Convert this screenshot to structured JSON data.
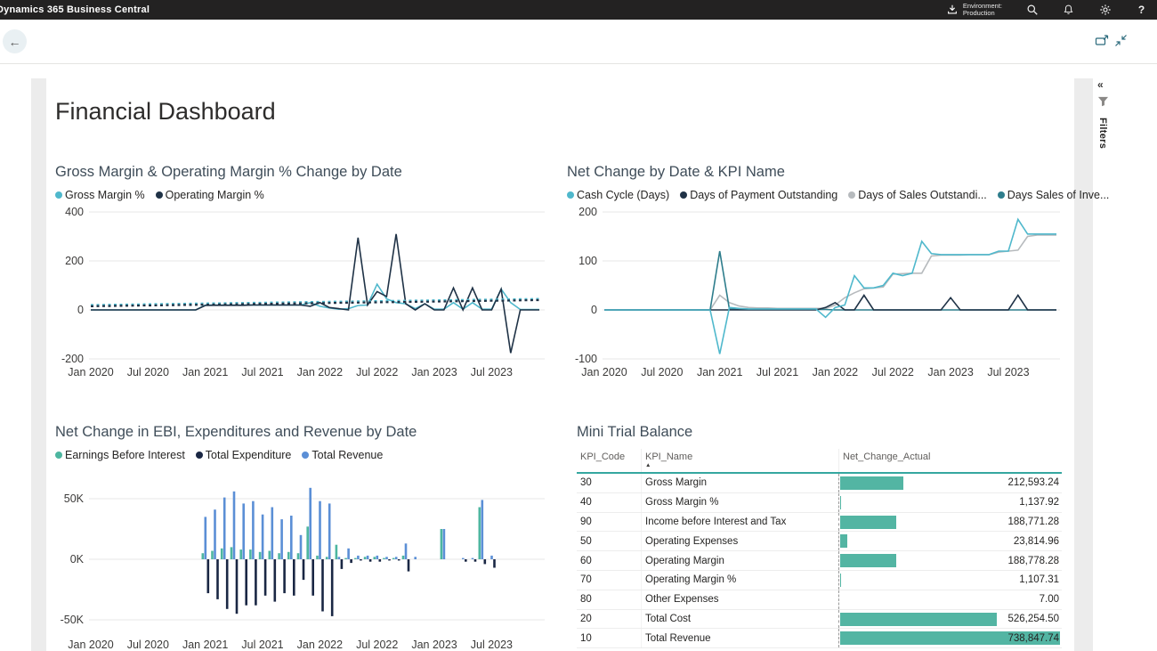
{
  "header": {
    "app_title": "Dynamics 365 Business Central",
    "environment_label": "Environment:",
    "environment_value": "Production",
    "help_label": "?"
  },
  "toolbar": {
    "back_glyph": "←"
  },
  "page": {
    "title": "Financial Dashboard"
  },
  "filters_pane": {
    "label": "Filters",
    "collapse_glyph": "«"
  },
  "colors": {
    "header_bg": "#232222",
    "accent_teal_icons": "#2b6a7c",
    "table_bar": "#53b5a3",
    "table_header_rule": "#35a7a0",
    "gridline": "#e7e7e7",
    "axis_text": "#3b3a39"
  },
  "chart_data": [
    {
      "type": "line",
      "title": "Gross Margin & Operating Margin % Change by Date",
      "categories": [
        "Jan 2020",
        "Jul 2020",
        "Jan 2021",
        "Jul 2021",
        "Jan 2022",
        "Jul 2022",
        "Jan 2023",
        "Jul 2023"
      ],
      "tick_interval": 6,
      "n_points": 48,
      "ylim": [
        -200,
        400
      ],
      "yticks": [
        400,
        200,
        0,
        -200
      ],
      "ytick_labels": [
        "400",
        "200",
        "0",
        "-200"
      ],
      "legend": [
        {
          "label": "Gross Margin %",
          "color": "#4fb8cc"
        },
        {
          "label": "Operating Margin %",
          "color": "#1f3246"
        }
      ],
      "series": [
        {
          "name": "Gross Margin %",
          "color": "#4fb8cc",
          "in_legend": true,
          "values": [
            0,
            0,
            0,
            0,
            0,
            0,
            0,
            0,
            0,
            0,
            0,
            0,
            20,
            20,
            20,
            20,
            20,
            20,
            20,
            20,
            20,
            20,
            20,
            30,
            15,
            8,
            3,
            5,
            18,
            20,
            105,
            45,
            30,
            25,
            5,
            25,
            3,
            3,
            30,
            3,
            30,
            3,
            3,
            85,
            30,
            2,
            2,
            2
          ]
        },
        {
          "name": "Operating Margin %",
          "color": "#1f3246",
          "in_legend": true,
          "values": [
            0,
            0,
            0,
            0,
            0,
            0,
            0,
            0,
            0,
            0,
            0,
            0,
            18,
            19,
            19,
            19,
            19,
            20,
            20,
            20,
            20,
            20,
            20,
            15,
            30,
            10,
            5,
            0,
            295,
            20,
            75,
            55,
            310,
            25,
            0,
            25,
            0,
            0,
            90,
            0,
            90,
            0,
            0,
            85,
            -176,
            0,
            0,
            0
          ]
        },
        {
          "name": "Gross Margin % trend",
          "color": "#4fb8cc",
          "dash": true,
          "linear": [
            20,
            45
          ],
          "in_legend": false
        },
        {
          "name": "Operating Margin % trend",
          "color": "#1f3246",
          "dash": true,
          "linear": [
            15,
            40
          ],
          "in_legend": false
        }
      ]
    },
    {
      "type": "line",
      "title": "Net Change by Date & KPI Name",
      "categories": [
        "Jan 2020",
        "Jul 2020",
        "Jan 2021",
        "Jul 2021",
        "Jan 2022",
        "Jul 2022",
        "Jan 2023",
        "Jul 2023"
      ],
      "tick_interval": 6,
      "n_points": 48,
      "ylim": [
        -100,
        200
      ],
      "yticks": [
        200,
        100,
        0,
        -100
      ],
      "ytick_labels": [
        "200",
        "100",
        "0",
        "-100"
      ],
      "legend": [
        {
          "label": "Cash Cycle (Days)",
          "color": "#4fb8cc"
        },
        {
          "label": "Days of Payment Outstanding",
          "color": "#1f3246"
        },
        {
          "label": "Days of Sales Outstandi...",
          "color": "#b6babd"
        },
        {
          "label": "Days Sales of Inve...",
          "color": "#2e7d8c"
        }
      ],
      "series": [
        {
          "name": "Days of Sales Outstanding",
          "color": "#b6babd",
          "in_legend": true,
          "values": [
            0,
            0,
            0,
            0,
            0,
            0,
            0,
            0,
            0,
            0,
            0,
            0,
            30,
            15,
            8,
            5,
            4,
            4,
            3,
            3,
            3,
            3,
            3,
            3,
            10,
            25,
            35,
            43,
            45,
            47,
            73,
            74,
            75,
            75,
            110,
            112,
            112,
            112,
            113,
            113,
            113,
            118,
            120,
            122,
            150,
            153,
            153,
            153
          ]
        },
        {
          "name": "Days Sales of Inventory",
          "color": "#2e7d8c",
          "in_legend": true,
          "values": [
            0,
            0,
            0,
            0,
            0,
            0,
            0,
            0,
            0,
            0,
            0,
            0,
            120,
            2,
            1,
            1,
            1,
            1,
            1,
            1,
            1,
            1,
            1,
            1,
            0,
            0,
            0,
            0,
            0,
            0,
            0,
            0,
            0,
            0,
            0,
            0,
            0,
            0,
            0,
            0,
            0,
            0,
            0,
            0,
            0,
            0,
            0,
            0
          ]
        },
        {
          "name": "Days of Payment Outstanding",
          "color": "#1f3246",
          "in_legend": true,
          "values": [
            0,
            0,
            0,
            0,
            0,
            0,
            0,
            0,
            0,
            0,
            0,
            0,
            0,
            0,
            0,
            0,
            0,
            0,
            0,
            0,
            0,
            0,
            0,
            5,
            15,
            0,
            0,
            30,
            0,
            0,
            0,
            0,
            0,
            0,
            0,
            0,
            25,
            0,
            0,
            0,
            0,
            0,
            0,
            30,
            0,
            0,
            0,
            0
          ]
        },
        {
          "name": "Cash Cycle (Days)",
          "color": "#4fb8cc",
          "in_legend": true,
          "values": [
            0,
            0,
            0,
            0,
            0,
            0,
            0,
            0,
            0,
            0,
            0,
            0,
            -90,
            5,
            3,
            2,
            2,
            2,
            2,
            2,
            2,
            2,
            2,
            -15,
            5,
            10,
            70,
            45,
            45,
            50,
            75,
            70,
            75,
            140,
            115,
            113,
            113,
            113,
            113,
            113,
            113,
            120,
            120,
            185,
            155,
            155,
            155,
            155
          ]
        }
      ]
    },
    {
      "type": "bar",
      "title": "Net Change in EBI, Expenditures and Revenue by Date",
      "categories": [
        "Jan 2020",
        "Jul 2020",
        "Jan 2021",
        "Jul 2021",
        "Jan 2022",
        "Jul 2022",
        "Jan 2023",
        "Jul 2023"
      ],
      "tick_interval": 6,
      "n_points": 48,
      "ylim": [
        -50,
        50
      ],
      "yticks": [
        50,
        0,
        -50
      ],
      "ytick_labels": [
        "50K",
        "0K",
        "-50K"
      ],
      "legend": [
        {
          "label": "Earnings Before Interest",
          "color": "#4db6a0"
        },
        {
          "label": "Total Expenditure",
          "color": "#1a2744"
        },
        {
          "label": "Total Revenue",
          "color": "#5b8fd6"
        }
      ],
      "series": [
        {
          "name": "Earnings Before Interest",
          "color": "#4db6a0",
          "values": [
            0,
            0,
            0,
            0,
            0,
            0,
            0,
            0,
            0,
            0,
            0,
            0,
            5,
            7,
            9,
            10,
            8,
            8,
            6,
            7,
            5,
            6,
            5,
            27,
            3,
            2,
            12,
            1,
            1,
            2,
            2,
            1,
            1,
            3,
            0,
            0,
            0,
            25,
            0,
            0,
            0,
            43,
            0,
            0,
            0,
            0,
            0,
            0
          ]
        },
        {
          "name": "Total Revenue",
          "color": "#5b8fd6",
          "values": [
            0,
            0,
            0,
            0,
            0,
            0,
            0,
            0,
            0,
            0,
            0,
            0,
            35,
            41,
            51,
            56,
            46,
            48,
            37,
            43,
            33,
            36,
            20,
            59,
            48,
            46,
            2,
            9,
            3,
            3,
            3,
            2,
            2,
            13,
            2,
            0,
            0,
            25,
            0,
            1,
            1,
            49,
            3,
            0,
            0,
            0,
            0,
            0
          ]
        },
        {
          "name": "Total Expenditure",
          "color": "#1a2744",
          "values": [
            0,
            0,
            0,
            0,
            0,
            0,
            0,
            0,
            0,
            0,
            0,
            0,
            -28,
            -33,
            -41,
            -45,
            -38,
            -38,
            -30,
            -35,
            -28,
            -30,
            -17,
            -30,
            -43,
            -47,
            -8,
            -3,
            -1,
            -2,
            -2,
            -1,
            -1,
            -10,
            0,
            0,
            0,
            0,
            0,
            -2,
            -2,
            -4,
            -7,
            0,
            0,
            0,
            0,
            0
          ]
        }
      ]
    },
    {
      "type": "table",
      "title": "Mini Trial Balance",
      "columns": [
        "KPI_Code",
        "KPI_Name",
        "Net_Change_Actual"
      ],
      "sort_column_index": 1,
      "sort_glyph": "▲",
      "max_value": 738847.74,
      "rows": [
        {
          "code": "30",
          "name": "Gross Margin",
          "display": "212,593.24",
          "value": 212593.24
        },
        {
          "code": "40",
          "name": "Gross Margin %",
          "display": "1,137.92",
          "value": 1137.92
        },
        {
          "code": "90",
          "name": "Income before Interest and Tax",
          "display": "188,771.28",
          "value": 188771.28
        },
        {
          "code": "50",
          "name": "Operating Expenses",
          "display": "23,814.96",
          "value": 23814.96
        },
        {
          "code": "60",
          "name": "Operating Margin",
          "display": "188,778.28",
          "value": 188778.28
        },
        {
          "code": "70",
          "name": "Operating Margin %",
          "display": "1,107.31",
          "value": 1107.31
        },
        {
          "code": "80",
          "name": "Other Expenses",
          "display": "7.00",
          "value": 7.0
        },
        {
          "code": "20",
          "name": "Total Cost",
          "display": "526,254.50",
          "value": 526254.5
        },
        {
          "code": "10",
          "name": "Total Revenue",
          "display": "738,847.74",
          "value": 738847.74
        }
      ]
    }
  ]
}
